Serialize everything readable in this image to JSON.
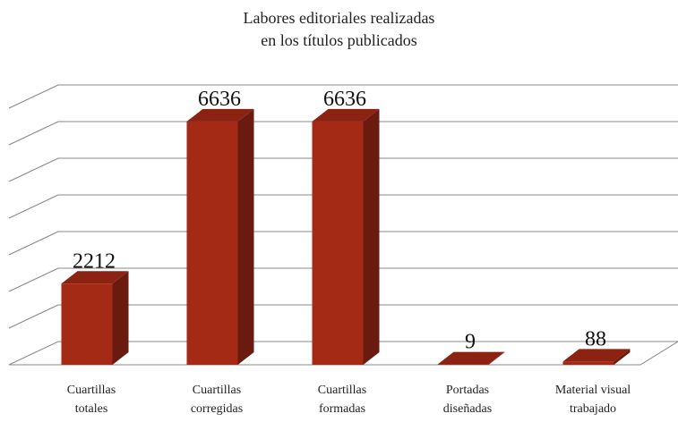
{
  "chart_data": {
    "type": "bar3d",
    "title": "Labores editoriales realizadas\nen los títulos publicados",
    "categories": [
      "Cuartillas\ntotales",
      "Cuartillas\ncorregidas",
      "Cuartillas\nformadas",
      "Portadas\ndiseñadas",
      "Material visual\ntrabajado"
    ],
    "values": [
      2212,
      6636,
      6636,
      9,
      88
    ],
    "color": "#a52a16",
    "ylim": [
      0,
      7000
    ],
    "yticks": [
      0,
      1000,
      2000,
      3000,
      4000,
      5000,
      6000,
      7000
    ],
    "grid": true
  }
}
